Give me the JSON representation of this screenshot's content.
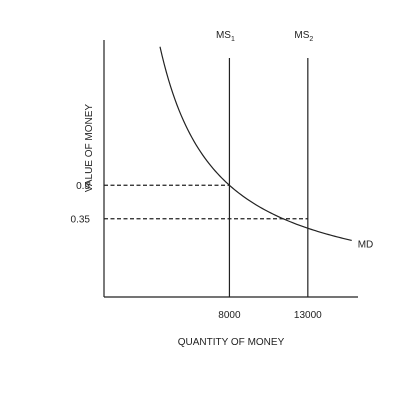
{
  "chart_data": {
    "type": "line",
    "xlabel": "QUANTITY OF MONEY",
    "ylabel": "VALUE OF MONEY",
    "x_ticks": [
      {
        "value": 8000,
        "label": "8000"
      },
      {
        "value": 13000,
        "label": "13000"
      }
    ],
    "y_ticks": [
      {
        "value": 0.5,
        "label": "0.5"
      },
      {
        "value": 0.35,
        "label": "0.35"
      }
    ],
    "series": [
      {
        "name": "MD",
        "kind": "demand-curve",
        "constant": 4000
      }
    ],
    "supply_lines": [
      {
        "name": "MS",
        "subscript": "1",
        "x": 8000
      },
      {
        "name": "MS",
        "subscript": "2",
        "x": 13000
      }
    ],
    "equilibria": [
      {
        "x": 8000,
        "y": 0.5
      },
      {
        "x": 13000,
        "y": 0.35
      }
    ],
    "xlim": [
      0,
      16200
    ],
    "ylim": [
      0,
      1.15
    ],
    "grid": false,
    "legend": "none"
  }
}
